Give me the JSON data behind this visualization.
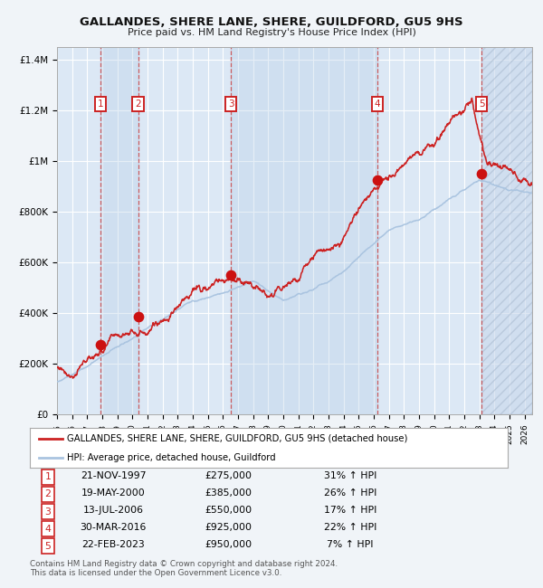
{
  "title": "GALLANDES, SHERE LANE, SHERE, GUILDFORD, GU5 9HS",
  "subtitle": "Price paid vs. HM Land Registry's House Price Index (HPI)",
  "sales": [
    {
      "label": 1,
      "date_str": "21-NOV-1997",
      "date_num": 1997.89,
      "price": 275000,
      "pct": "31%",
      "dir": "↑"
    },
    {
      "label": 2,
      "date_str": "19-MAY-2000",
      "date_num": 2000.38,
      "price": 385000,
      "pct": "26%",
      "dir": "↑"
    },
    {
      "label": 3,
      "date_str": "13-JUL-2006",
      "date_num": 2006.53,
      "price": 550000,
      "pct": "17%",
      "dir": "↑"
    },
    {
      "label": 4,
      "date_str": "30-MAR-2016",
      "date_num": 2016.25,
      "price": 925000,
      "pct": "22%",
      "dir": "↑"
    },
    {
      "label": 5,
      "date_str": "22-FEB-2023",
      "date_num": 2023.14,
      "price": 950000,
      "pct": "7%",
      "dir": "↑"
    }
  ],
  "xmin": 1995.0,
  "xmax": 2026.5,
  "ymin": 0,
  "ymax": 1450000,
  "yticks": [
    0,
    200000,
    400000,
    600000,
    800000,
    1000000,
    1200000,
    1400000
  ],
  "ytick_labels": [
    "£0",
    "£200K",
    "£400K",
    "£600K",
    "£800K",
    "£1M",
    "£1.2M",
    "£1.4M"
  ],
  "legend_line1": "GALLANDES, SHERE LANE, SHERE, GUILDFORD, GU5 9HS (detached house)",
  "legend_line2": "HPI: Average price, detached house, Guildford",
  "footer": "Contains HM Land Registry data © Crown copyright and database right 2024.\nThis data is licensed under the Open Government Licence v3.0.",
  "fig_bg": "#f0f4f8",
  "plot_bg": "#dce8f5",
  "hpi_color": "#aac4e0",
  "price_color": "#cc2222",
  "sale_dot_color": "#cc1111",
  "dashed_line_color": "#cc4444",
  "label_box_color": "#cc2222",
  "grid_color": "#ffffff"
}
